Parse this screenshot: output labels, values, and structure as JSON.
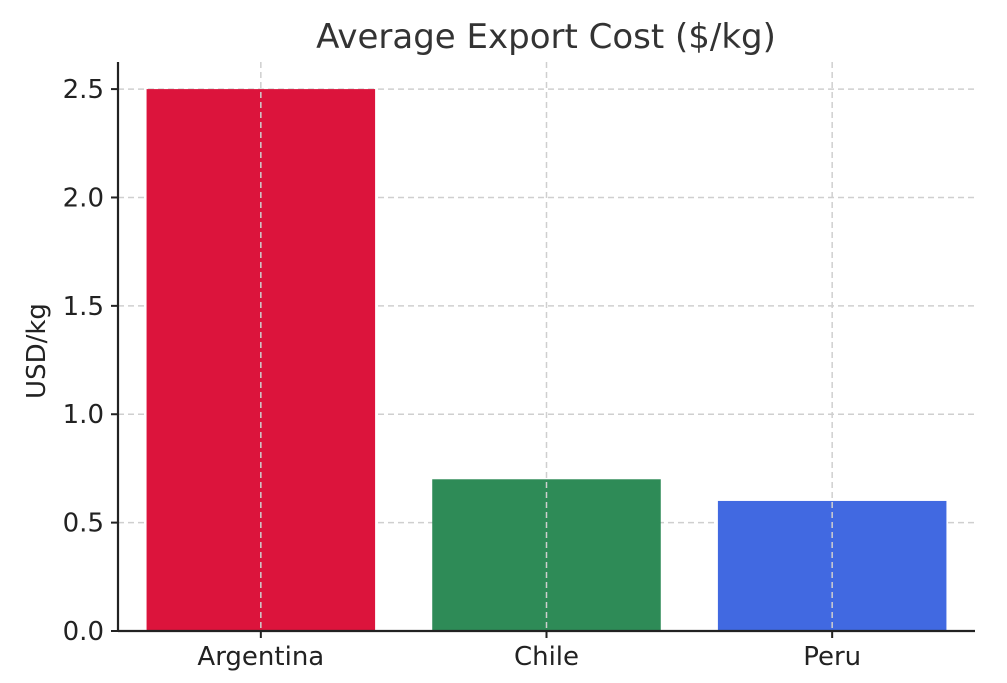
{
  "chart_data": {
    "type": "bar",
    "title": "Average Export Cost ($/kg)",
    "xlabel": "",
    "ylabel": "USD/kg",
    "categories": [
      "Argentina",
      "Chile",
      "Peru"
    ],
    "values": [
      2.5,
      0.7,
      0.6
    ],
    "colors": [
      "#dc143c",
      "#2e8b57",
      "#4169e1"
    ],
    "ylim": [
      0,
      2.625
    ],
    "yticks": [
      0.0,
      0.5,
      1.0,
      1.5,
      2.0,
      2.5
    ],
    "ytick_labels": [
      "0.0",
      "0.5",
      "1.0",
      "1.5",
      "2.0",
      "2.5"
    ],
    "grid": true
  }
}
